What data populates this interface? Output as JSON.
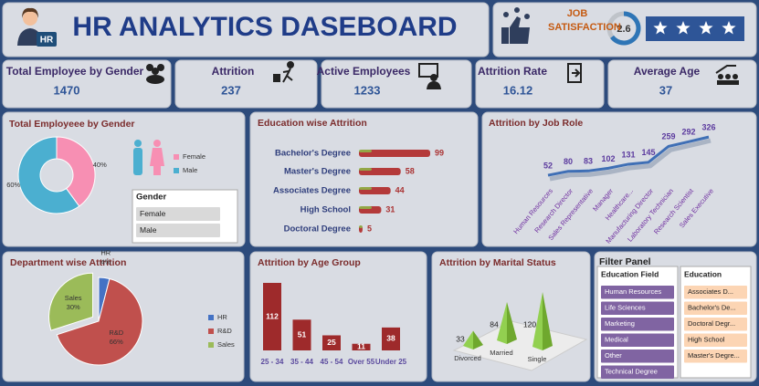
{
  "header": {
    "title": "HR ANALYTICS DASEBOARD",
    "badge": "HR",
    "satisfaction_label": "JOB SATISFACTION",
    "satisfaction": 2.6,
    "stars": 4
  },
  "kpis": [
    {
      "label": "Total Employee by Gender",
      "value": 1470
    },
    {
      "label": "Attrition",
      "value": 237
    },
    {
      "label": "Active Employees",
      "value": 1233
    },
    {
      "label": "Attrition  Rate",
      "value": 16.12
    },
    {
      "label": "Average Age",
      "value": 37
    }
  ],
  "chart_data": [
    {
      "type": "donut",
      "title": "Total Employeee by Gender",
      "categories": [
        "Female",
        "Male"
      ],
      "values": [
        40,
        60
      ],
      "value_labels": [
        "40%",
        "60%"
      ],
      "colors": [
        "#f78fb3",
        "#4bafd0"
      ]
    },
    {
      "type": "hbar",
      "title": "Education wise Attrition",
      "categories": [
        "Bachelor's Degree",
        "Master's Degree",
        "Associates Degree",
        "High School",
        "Doctoral Degree"
      ],
      "values": [
        99,
        58,
        44,
        31,
        5
      ],
      "color": "#b43a3a"
    },
    {
      "type": "line",
      "title": "Attrition by Job Role",
      "categories": [
        "Human Resources",
        "Research Director",
        "Sales Representative",
        "Manager",
        "Healthcare...",
        "Manufacturing Director",
        "Laboratory Technician",
        "Research Scientist",
        "Sales Executive"
      ],
      "values": [
        52,
        80,
        83,
        102,
        131,
        145,
        259,
        292,
        326
      ],
      "color": "#3f6fb5"
    },
    {
      "type": "pie",
      "title": "Department wise Attrition",
      "categories": [
        "HR",
        "R&D",
        "Sales"
      ],
      "values": [
        4,
        66,
        30
      ],
      "value_labels": [
        "4%",
        "66%",
        "30%"
      ],
      "colors": [
        "#4472c4",
        "#c0504d",
        "#9bbb59"
      ]
    },
    {
      "type": "bar",
      "title": "Attrition by  Age Group",
      "categories": [
        "25 - 34",
        "35 - 44",
        "45 - 54",
        "Over 55",
        "Under 25"
      ],
      "values": [
        112,
        51,
        25,
        11,
        38
      ],
      "color": "#9e2a2b"
    },
    {
      "type": "pyramid",
      "title": "Attrition by Marital Status",
      "categories": [
        "Divorced",
        "Married",
        "Single"
      ],
      "values": [
        33,
        84,
        120
      ],
      "color": "#92d050"
    }
  ],
  "slicers": [
    {
      "title": "Gender",
      "items": [
        "Female",
        "Male"
      ]
    }
  ],
  "filter_panel": {
    "title": "Filter Panel",
    "education_field": {
      "title": "Education Field",
      "items": [
        "Human Resources",
        "Life Sciences",
        "Marketing",
        "Medical",
        "Other",
        "Technical Degree"
      ]
    },
    "education": {
      "title": "Education",
      "items": [
        "Associates D...",
        "Bachelor's De...",
        "Doctoral Degr...",
        "High School",
        "Master's Degre..."
      ]
    }
  }
}
